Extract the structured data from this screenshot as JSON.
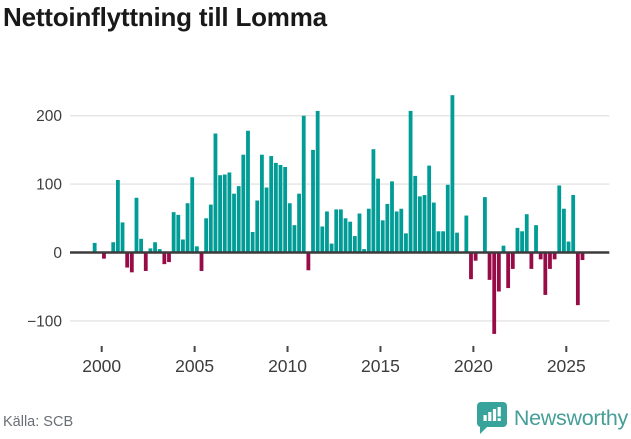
{
  "chart_data": {
    "type": "bar",
    "title": "Nettoinflyttning till Lomma",
    "source": "Källa: SCB",
    "frequency": "quarterly",
    "start_period": "1999 Q3",
    "end_period": "2025 Q4",
    "values": [
      14,
      0,
      -9,
      0,
      15,
      106,
      44,
      -22,
      -29,
      80,
      20,
      -27,
      6,
      15,
      5,
      -17,
      -14,
      59,
      55,
      19,
      72,
      110,
      9,
      -27,
      50,
      70,
      174,
      113,
      114,
      117,
      86,
      97,
      143,
      178,
      30,
      76,
      143,
      95,
      141,
      131,
      128,
      125,
      72,
      40,
      86,
      200,
      -26,
      150,
      207,
      38,
      60,
      13,
      63,
      63,
      50,
      45,
      24,
      57,
      5,
      64,
      151,
      108,
      47,
      71,
      104,
      60,
      64,
      28,
      207,
      112,
      82,
      84,
      127,
      73,
      31,
      31,
      99,
      230,
      29,
      0,
      54,
      -39,
      -12,
      0,
      81,
      -40,
      -119,
      -57,
      10,
      -52,
      -24,
      36,
      31,
      56,
      -24,
      40,
      -10,
      -62,
      -24,
      -10,
      98,
      64,
      16,
      84,
      -77,
      -11
    ],
    "xlabel": "",
    "ylabel": "",
    "ylim": [
      -140,
      245
    ],
    "grid": "horizontal",
    "legend": "none",
    "y_ticks": [
      {
        "value": 200,
        "label": "200"
      },
      {
        "value": 100,
        "label": "100"
      },
      {
        "value": 0,
        "label": "0"
      },
      {
        "value": -100,
        "label": "−100"
      }
    ],
    "x_ticks": [
      {
        "year": 2000,
        "label": "2000"
      },
      {
        "year": 2005,
        "label": "2005"
      },
      {
        "year": 2010,
        "label": "2010"
      },
      {
        "year": 2015,
        "label": "2015"
      },
      {
        "year": 2020,
        "label": "2020"
      },
      {
        "year": 2025,
        "label": "2025"
      }
    ],
    "colors": {
      "positive": "#009c95",
      "negative": "#970b46",
      "gridline": "#e4e4e4",
      "zero_line": "#3b3b3b",
      "tick": "#474747",
      "axis_text": "#3d3d3d"
    }
  },
  "branding": {
    "logo_text": "Newsworthy",
    "logo_icon": "bar-chart-speech-bubble-icon",
    "logo_color": "#38a39a"
  }
}
